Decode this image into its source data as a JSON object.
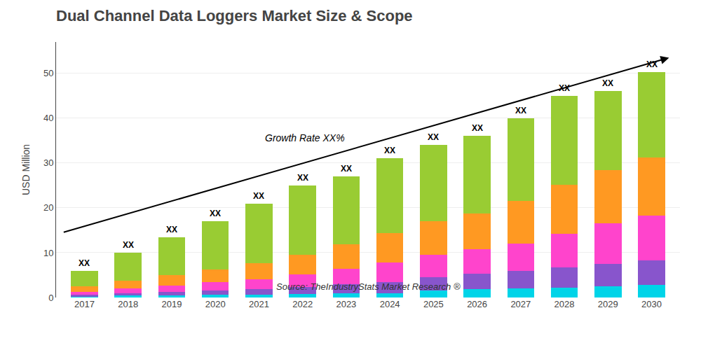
{
  "chart_data": {
    "type": "bar",
    "stacked": true,
    "title": "Dual Channel Data Loggers Market Size & Scope",
    "ylabel": "USD Million",
    "source": "Source: TheIndustryStats Market Research ®",
    "categories": [
      "2017",
      "2018",
      "2019",
      "2020",
      "2021",
      "2022",
      "2023",
      "2024",
      "2025",
      "2026",
      "2027",
      "2028",
      "2029",
      "2030"
    ],
    "series": [
      {
        "color": "#00d4e8",
        "values": [
          0.2,
          0.4,
          0.5,
          0.6,
          0.7,
          0.8,
          0.9,
          1.0,
          1.5,
          1.8,
          2.0,
          2.2,
          2.5,
          2.8
        ]
      },
      {
        "color": "#8855cc",
        "values": [
          0.4,
          0.6,
          0.8,
          1.0,
          1.2,
          1.5,
          2.0,
          2.5,
          3.0,
          3.5,
          4.0,
          4.5,
          5.0,
          5.5
        ]
      },
      {
        "color": "#ff44cc",
        "values": [
          0.7,
          1.0,
          1.4,
          1.8,
          2.2,
          2.8,
          3.5,
          4.3,
          5.0,
          5.5,
          6.0,
          7.5,
          9.0,
          10.0
        ]
      },
      {
        "color": "#ff9922",
        "values": [
          1.2,
          1.8,
          2.3,
          2.8,
          3.5,
          4.5,
          5.5,
          6.5,
          7.5,
          8.0,
          9.5,
          11.0,
          12.0,
          13.0
        ]
      },
      {
        "color": "#99cc33",
        "values": [
          3.5,
          6.2,
          8.5,
          10.8,
          13.4,
          15.4,
          15.1,
          16.7,
          17.0,
          17.2,
          18.5,
          19.8,
          17.5,
          19.0
        ]
      }
    ],
    "annotations": [
      {
        "text": "XX",
        "category": "2017"
      },
      {
        "text": "XX",
        "category": "2018"
      },
      {
        "text": "XX",
        "category": "2019"
      },
      {
        "text": "XX",
        "category": "2020"
      },
      {
        "text": "XX",
        "category": "2021"
      },
      {
        "text": "XX",
        "category": "2022"
      },
      {
        "text": "XX",
        "category": "2023"
      },
      {
        "text": "XX",
        "category": "2024"
      },
      {
        "text": "XX",
        "category": "2025"
      },
      {
        "text": "XX",
        "category": "2026"
      },
      {
        "text": "XX",
        "category": "2027"
      },
      {
        "text": "XX",
        "category": "2028"
      },
      {
        "text": "XX",
        "category": "2029"
      },
      {
        "text": "XX",
        "category": "2030"
      },
      {
        "text": "Growth Rate XX%"
      }
    ],
    "ylim": [
      0,
      57
    ],
    "yticks": [
      0,
      10,
      20,
      30,
      40,
      50
    ],
    "grid": true
  }
}
